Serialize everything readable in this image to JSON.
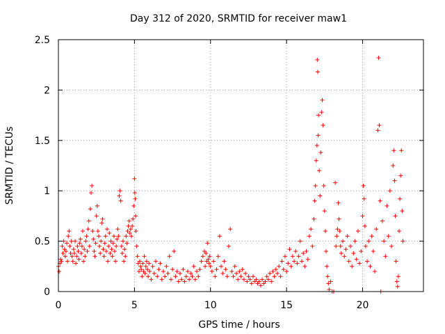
{
  "chart_data": {
    "type": "scatter",
    "title": "Day 312 of 2020, SRMTID for receiver maw1",
    "xlabel": "GPS time / hours",
    "ylabel": "SRMTID / TECUs",
    "xlim": [
      0,
      24
    ],
    "ylim": [
      0,
      2.5
    ],
    "xticks": [
      0,
      5,
      10,
      15,
      20
    ],
    "xtick_labels": [
      "0",
      "5",
      "10",
      "15",
      "20"
    ],
    "yticks": [
      0,
      0.5,
      1,
      1.5,
      2,
      2.5
    ],
    "ytick_labels": [
      "0",
      "0.5",
      "1",
      "1.5",
      "2",
      "2.5"
    ],
    "grid": true,
    "marker": "+",
    "color": "#ff0000",
    "series": [
      {
        "name": "SRMTID",
        "points": [
          [
            0.0,
            0.25
          ],
          [
            0.05,
            0.2
          ],
          [
            0.1,
            0.28
          ],
          [
            0.15,
            0.32
          ],
          [
            0.2,
            0.3
          ],
          [
            0.25,
            0.45
          ],
          [
            0.3,
            0.38
          ],
          [
            0.35,
            0.5
          ],
          [
            0.4,
            0.42
          ],
          [
            0.45,
            0.35
          ],
          [
            0.5,
            0.4
          ],
          [
            0.55,
            0.48
          ],
          [
            0.6,
            0.3
          ],
          [
            0.65,
            0.55
          ],
          [
            0.7,
            0.6
          ],
          [
            0.75,
            0.45
          ],
          [
            0.8,
            0.38
          ],
          [
            0.85,
            0.5
          ],
          [
            0.9,
            0.35
          ],
          [
            0.95,
            0.3
          ],
          [
            1.0,
            0.42
          ],
          [
            1.05,
            0.38
          ],
          [
            1.1,
            0.5
          ],
          [
            1.15,
            0.28
          ],
          [
            1.2,
            0.35
          ],
          [
            1.25,
            0.45
          ],
          [
            1.3,
            0.4
          ],
          [
            1.35,
            0.32
          ],
          [
            1.4,
            0.48
          ],
          [
            1.45,
            0.52
          ],
          [
            1.5,
            0.38
          ],
          [
            1.55,
            0.45
          ],
          [
            1.6,
            0.6
          ],
          [
            1.65,
            0.3
          ],
          [
            1.7,
            0.42
          ],
          [
            1.75,
            0.35
          ],
          [
            1.8,
            0.5
          ],
          [
            1.85,
            0.55
          ],
          [
            1.9,
            0.4
          ],
          [
            1.95,
            0.62
          ],
          [
            2.0,
            0.7
          ],
          [
            2.05,
            0.45
          ],
          [
            2.1,
            0.82
          ],
          [
            2.15,
            0.98
          ],
          [
            2.2,
            1.05
          ],
          [
            2.25,
            0.6
          ],
          [
            2.3,
            0.52
          ],
          [
            2.35,
            0.4
          ],
          [
            2.4,
            0.35
          ],
          [
            2.45,
            0.48
          ],
          [
            2.5,
            0.75
          ],
          [
            2.55,
            0.85
          ],
          [
            2.6,
            0.6
          ],
          [
            2.65,
            0.55
          ],
          [
            2.7,
            0.45
          ],
          [
            2.75,
            0.38
          ],
          [
            2.8,
            0.5
          ],
          [
            2.85,
            0.68
          ],
          [
            2.9,
            0.72
          ],
          [
            2.95,
            0.42
          ],
          [
            3.0,
            0.35
          ],
          [
            3.05,
            0.48
          ],
          [
            3.1,
            0.55
          ],
          [
            3.15,
            0.4
          ],
          [
            3.2,
            0.62
          ],
          [
            3.25,
            0.3
          ],
          [
            3.3,
            0.45
          ],
          [
            3.35,
            0.58
          ],
          [
            3.4,
            0.38
          ],
          [
            3.45,
            0.5
          ],
          [
            3.5,
            0.42
          ],
          [
            3.55,
            0.35
          ],
          [
            3.6,
            0.48
          ],
          [
            3.65,
            0.55
          ],
          [
            3.7,
            0.4
          ],
          [
            3.75,
            0.3
          ],
          [
            3.8,
            0.45
          ],
          [
            3.85,
            0.52
          ],
          [
            3.9,
            0.62
          ],
          [
            3.95,
            0.55
          ],
          [
            4.0,
            0.95
          ],
          [
            4.05,
            1.0
          ],
          [
            4.1,
            0.9
          ],
          [
            4.15,
            0.45
          ],
          [
            4.2,
            0.38
          ],
          [
            4.25,
            0.5
          ],
          [
            4.3,
            0.3
          ],
          [
            4.35,
            0.42
          ],
          [
            4.4,
            0.35
          ],
          [
            4.45,
            0.55
          ],
          [
            4.5,
            0.48
          ],
          [
            4.55,
            0.6
          ],
          [
            4.6,
            0.65
          ],
          [
            4.65,
            0.7
          ],
          [
            4.7,
            0.58
          ],
          [
            4.75,
            0.62
          ],
          [
            4.8,
            0.55
          ],
          [
            4.85,
            0.65
          ],
          [
            4.9,
            0.72
          ],
          [
            4.95,
            0.85
          ],
          [
            5.0,
            1.12
          ],
          [
            5.02,
            0.98
          ],
          [
            5.05,
            0.92
          ],
          [
            5.08,
            0.75
          ],
          [
            5.1,
            0.6
          ],
          [
            5.15,
            0.45
          ],
          [
            5.2,
            0.35
          ],
          [
            5.25,
            0.28
          ],
          [
            5.3,
            0.2
          ],
          [
            5.35,
            0.3
          ],
          [
            5.4,
            0.25
          ],
          [
            5.45,
            0.22
          ],
          [
            5.5,
            0.15
          ],
          [
            5.55,
            0.28
          ],
          [
            5.6,
            0.2
          ],
          [
            5.65,
            0.35
          ],
          [
            5.7,
            0.18
          ],
          [
            5.75,
            0.25
          ],
          [
            5.8,
            0.3
          ],
          [
            5.85,
            0.22
          ],
          [
            5.9,
            0.15
          ],
          [
            5.95,
            0.28
          ],
          [
            6.0,
            0.2
          ],
          [
            6.1,
            0.12
          ],
          [
            6.2,
            0.25
          ],
          [
            6.3,
            0.18
          ],
          [
            6.4,
            0.3
          ],
          [
            6.5,
            0.15
          ],
          [
            6.6,
            0.22
          ],
          [
            6.7,
            0.28
          ],
          [
            6.8,
            0.12
          ],
          [
            6.9,
            0.2
          ],
          [
            7.0,
            0.15
          ],
          [
            7.1,
            0.25
          ],
          [
            7.2,
            0.18
          ],
          [
            7.3,
            0.35
          ],
          [
            7.4,
            0.12
          ],
          [
            7.5,
            0.22
          ],
          [
            7.6,
            0.4
          ],
          [
            7.7,
            0.15
          ],
          [
            7.8,
            0.2
          ],
          [
            7.9,
            0.1
          ],
          [
            8.0,
            0.18
          ],
          [
            8.1,
            0.12
          ],
          [
            8.2,
            0.22
          ],
          [
            8.3,
            0.1
          ],
          [
            8.4,
            0.15
          ],
          [
            8.5,
            0.2
          ],
          [
            8.6,
            0.12
          ],
          [
            8.7,
            0.18
          ],
          [
            8.8,
            0.15
          ],
          [
            8.9,
            0.25
          ],
          [
            9.0,
            0.12
          ],
          [
            9.1,
            0.2
          ],
          [
            9.2,
            0.15
          ],
          [
            9.3,
            0.22
          ],
          [
            9.4,
            0.3
          ],
          [
            9.5,
            0.35
          ],
          [
            9.6,
            0.4
          ],
          [
            9.65,
            0.25
          ],
          [
            9.7,
            0.38
          ],
          [
            9.75,
            0.3
          ],
          [
            9.8,
            0.48
          ],
          [
            9.85,
            0.32
          ],
          [
            9.9,
            0.28
          ],
          [
            9.95,
            0.35
          ],
          [
            10.0,
            0.25
          ],
          [
            10.1,
            0.2
          ],
          [
            10.2,
            0.3
          ],
          [
            10.3,
            0.15
          ],
          [
            10.4,
            0.22
          ],
          [
            10.5,
            0.35
          ],
          [
            10.6,
            0.55
          ],
          [
            10.7,
            0.25
          ],
          [
            10.8,
            0.18
          ],
          [
            10.9,
            0.3
          ],
          [
            11.0,
            0.22
          ],
          [
            11.1,
            0.15
          ],
          [
            11.2,
            0.45
          ],
          [
            11.3,
            0.62
          ],
          [
            11.4,
            0.2
          ],
          [
            11.5,
            0.15
          ],
          [
            11.6,
            0.25
          ],
          [
            11.7,
            0.18
          ],
          [
            11.8,
            0.12
          ],
          [
            11.9,
            0.2
          ],
          [
            12.0,
            0.15
          ],
          [
            12.1,
            0.22
          ],
          [
            12.2,
            0.12
          ],
          [
            12.3,
            0.18
          ],
          [
            12.4,
            0.1
          ],
          [
            12.5,
            0.15
          ],
          [
            12.6,
            0.12
          ],
          [
            12.7,
            0.08
          ],
          [
            12.8,
            0.15
          ],
          [
            12.9,
            0.1
          ],
          [
            13.0,
            0.12
          ],
          [
            13.1,
            0.08
          ],
          [
            13.2,
            0.1
          ],
          [
            13.3,
            0.06
          ],
          [
            13.4,
            0.12
          ],
          [
            13.5,
            0.08
          ],
          [
            13.6,
            0.1
          ],
          [
            13.7,
            0.15
          ],
          [
            13.8,
            0.12
          ],
          [
            13.9,
            0.18
          ],
          [
            14.0,
            0.1
          ],
          [
            14.1,
            0.2
          ],
          [
            14.2,
            0.15
          ],
          [
            14.3,
            0.22
          ],
          [
            14.4,
            0.18
          ],
          [
            14.5,
            0.25
          ],
          [
            14.6,
            0.15
          ],
          [
            14.7,
            0.3
          ],
          [
            14.8,
            0.22
          ],
          [
            14.9,
            0.35
          ],
          [
            15.0,
            0.2
          ],
          [
            15.1,
            0.28
          ],
          [
            15.2,
            0.42
          ],
          [
            15.3,
            0.25
          ],
          [
            15.4,
            0.35
          ],
          [
            15.5,
            0.3
          ],
          [
            15.6,
            0.4
          ],
          [
            15.7,
            0.28
          ],
          [
            15.8,
            0.35
          ],
          [
            15.9,
            0.5
          ],
          [
            16.0,
            0.3
          ],
          [
            16.1,
            0.38
          ],
          [
            16.2,
            0.25
          ],
          [
            16.3,
            0.4
          ],
          [
            16.4,
            0.32
          ],
          [
            16.5,
            0.55
          ],
          [
            16.6,
            0.62
          ],
          [
            16.7,
            0.45
          ],
          [
            16.8,
            0.72
          ],
          [
            16.85,
            0.9
          ],
          [
            16.9,
            1.05
          ],
          [
            16.95,
            1.3
          ],
          [
            17.0,
            1.45
          ],
          [
            17.02,
            2.3
          ],
          [
            17.05,
            2.18
          ],
          [
            17.08,
            1.55
          ],
          [
            17.1,
            1.75
          ],
          [
            17.15,
            1.2
          ],
          [
            17.2,
            0.95
          ],
          [
            17.25,
            1.38
          ],
          [
            17.3,
            1.78
          ],
          [
            17.35,
            1.9
          ],
          [
            17.4,
            1.65
          ],
          [
            17.45,
            1.05
          ],
          [
            17.5,
            0.8
          ],
          [
            17.55,
            0.6
          ],
          [
            17.6,
            0.4
          ],
          [
            17.65,
            0.25
          ],
          [
            17.7,
            0.15
          ],
          [
            17.75,
            0.08
          ],
          [
            17.8,
            0.02
          ],
          [
            17.9,
            0.1
          ],
          [
            18.0,
            0.0
          ],
          [
            18.1,
            0.0
          ],
          [
            18.2,
            1.08
          ],
          [
            18.25,
            0.45
          ],
          [
            18.3,
            0.55
          ],
          [
            18.35,
            0.62
          ],
          [
            18.4,
            0.88
          ],
          [
            18.45,
            0.72
          ],
          [
            18.5,
            0.6
          ],
          [
            18.55,
            0.45
          ],
          [
            18.6,
            0.38
          ],
          [
            18.7,
            0.5
          ],
          [
            18.8,
            0.35
          ],
          [
            18.9,
            0.42
          ],
          [
            19.0,
            0.55
          ],
          [
            19.1,
            0.3
          ],
          [
            19.2,
            0.45
          ],
          [
            19.3,
            0.25
          ],
          [
            19.4,
            0.38
          ],
          [
            19.5,
            0.5
          ],
          [
            19.6,
            0.32
          ],
          [
            19.7,
            0.6
          ],
          [
            19.8,
            0.28
          ],
          [
            19.9,
            0.4
          ],
          [
            20.0,
            0.75
          ],
          [
            20.05,
            1.05
          ],
          [
            20.1,
            0.92
          ],
          [
            20.15,
            0.65
          ],
          [
            20.2,
            0.45
          ],
          [
            20.3,
            0.3
          ],
          [
            20.4,
            0.5
          ],
          [
            20.5,
            0.25
          ],
          [
            20.6,
            0.55
          ],
          [
            20.7,
            0.4
          ],
          [
            20.8,
            0.2
          ],
          [
            20.9,
            0.62
          ],
          [
            21.0,
            1.6
          ],
          [
            21.05,
            2.32
          ],
          [
            21.1,
            1.65
          ],
          [
            21.15,
            0.9
          ],
          [
            21.2,
            0.0
          ],
          [
            21.3,
            0.7
          ],
          [
            21.4,
            0.5
          ],
          [
            21.5,
            0.35
          ],
          [
            21.6,
            0.85
          ],
          [
            21.7,
            0.55
          ],
          [
            21.8,
            1.0
          ],
          [
            21.9,
            0.45
          ],
          [
            22.0,
            1.25
          ],
          [
            22.05,
            1.4
          ],
          [
            22.1,
            1.1
          ],
          [
            22.15,
            0.75
          ],
          [
            22.2,
            0.3
          ],
          [
            22.25,
            0.1
          ],
          [
            22.3,
            0.05
          ],
          [
            22.35,
            0.15
          ],
          [
            22.4,
            0.6
          ],
          [
            22.45,
            0.92
          ],
          [
            22.5,
            1.15
          ],
          [
            22.55,
            1.4
          ],
          [
            22.6,
            0.8
          ],
          [
            22.65,
            0.5
          ]
        ]
      }
    ]
  }
}
